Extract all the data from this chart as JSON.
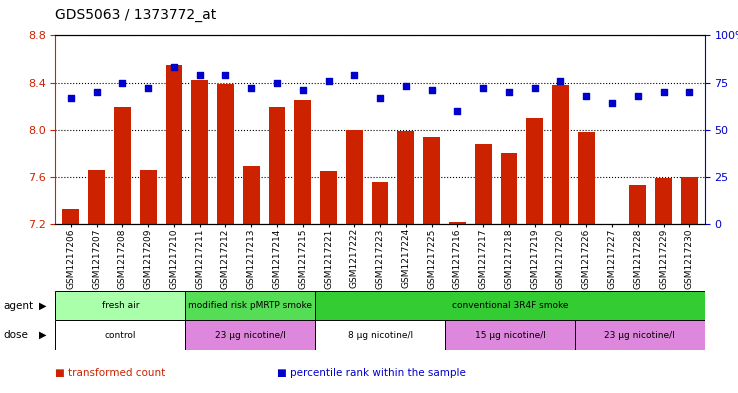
{
  "title": "GDS5063 / 1373772_at",
  "samples": [
    "GSM1217206",
    "GSM1217207",
    "GSM1217208",
    "GSM1217209",
    "GSM1217210",
    "GSM1217211",
    "GSM1217212",
    "GSM1217213",
    "GSM1217214",
    "GSM1217215",
    "GSM1217221",
    "GSM1217222",
    "GSM1217223",
    "GSM1217224",
    "GSM1217225",
    "GSM1217216",
    "GSM1217217",
    "GSM1217218",
    "GSM1217219",
    "GSM1217220",
    "GSM1217226",
    "GSM1217227",
    "GSM1217228",
    "GSM1217229",
    "GSM1217230"
  ],
  "bar_values": [
    7.33,
    7.66,
    8.19,
    7.66,
    8.55,
    8.42,
    8.39,
    7.69,
    8.19,
    8.25,
    7.65,
    8.0,
    7.56,
    7.99,
    7.94,
    7.22,
    7.88,
    7.8,
    8.1,
    8.38,
    7.98,
    7.2,
    7.53,
    7.59,
    7.6
  ],
  "dot_values": [
    67,
    70,
    75,
    72,
    83,
    79,
    79,
    72,
    75,
    71,
    76,
    79,
    67,
    73,
    71,
    60,
    72,
    70,
    72,
    76,
    68,
    64,
    68,
    70,
    70
  ],
  "ylim_left": [
    7.2,
    8.8
  ],
  "ylim_right": [
    0,
    100
  ],
  "yticks_left": [
    7.2,
    7.6,
    8.0,
    8.4,
    8.8
  ],
  "yticks_right": [
    0,
    25,
    50,
    75,
    100
  ],
  "bar_color": "#cc2200",
  "dot_color": "#0000cc",
  "agent_groups": [
    {
      "label": "fresh air",
      "start": 0,
      "end": 5,
      "color": "#aaffaa"
    },
    {
      "label": "modified risk pMRTP smoke",
      "start": 5,
      "end": 10,
      "color": "#55dd55"
    },
    {
      "label": "conventional 3R4F smoke",
      "start": 10,
      "end": 25,
      "color": "#33cc33"
    }
  ],
  "dose_groups": [
    {
      "label": "control",
      "start": 0,
      "end": 5,
      "color": "#ffffff"
    },
    {
      "label": "23 μg nicotine/l",
      "start": 5,
      "end": 10,
      "color": "#dd88dd"
    },
    {
      "label": "8 μg nicotine/l",
      "start": 10,
      "end": 15,
      "color": "#ffffff"
    },
    {
      "label": "15 μg nicotine/l",
      "start": 15,
      "end": 20,
      "color": "#dd88dd"
    },
    {
      "label": "23 μg nicotine/l",
      "start": 20,
      "end": 25,
      "color": "#dd88dd"
    }
  ],
  "legend_items": [
    {
      "label": "transformed count",
      "color": "#cc2200"
    },
    {
      "label": "percentile rank within the sample",
      "color": "#0000cc"
    }
  ],
  "title_fontsize": 10,
  "tick_fontsize": 6.5,
  "background_color": "#ffffff"
}
